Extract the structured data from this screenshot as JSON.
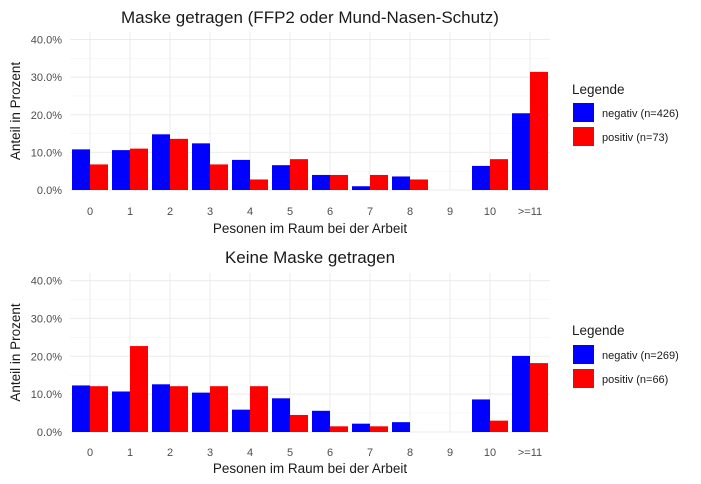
{
  "chart_data": [
    {
      "type": "bar",
      "title": "Maske getragen (FFP2 oder Mund-Nasen-Schutz)",
      "xlabel": "Pesonen im Raum bei der Arbeit",
      "ylabel": "Anteil in Prozent",
      "categories": [
        "0",
        "1",
        "2",
        "3",
        "4",
        "5",
        "6",
        "7",
        "8",
        "9",
        "10",
        ">=11"
      ],
      "ylim": [
        0,
        42
      ],
      "yticks": [
        0,
        10,
        20,
        30,
        40
      ],
      "ytick_labels": [
        "0.0%",
        "10.0%",
        "20.0%",
        "30.0%",
        "40.0%"
      ],
      "grid": true,
      "legend": {
        "title": "Legende",
        "position": "right"
      },
      "series": [
        {
          "name": "negativ (n=426)",
          "color": "#0000ff",
          "values": [
            10.8,
            10.6,
            14.8,
            12.4,
            8.0,
            6.6,
            4.0,
            1.0,
            3.6,
            0.0,
            6.4,
            20.4
          ]
        },
        {
          "name": "positiv (n=73)",
          "color": "#ff0000",
          "values": [
            6.8,
            11.0,
            13.6,
            6.8,
            2.8,
            8.2,
            4.0,
            4.0,
            2.8,
            0.0,
            8.2,
            31.4
          ]
        }
      ]
    },
    {
      "type": "bar",
      "title": "Keine Maske getragen",
      "xlabel": "Pesonen im Raum bei der Arbeit",
      "ylabel": "Anteil in Prozent",
      "categories": [
        "0",
        "1",
        "2",
        "3",
        "4",
        "5",
        "6",
        "7",
        "8",
        "9",
        "10",
        ">=11"
      ],
      "ylim": [
        0,
        42
      ],
      "yticks": [
        0,
        10,
        20,
        30,
        40
      ],
      "ytick_labels": [
        "0.0%",
        "10.0%",
        "20.0%",
        "30.0%",
        "40.0%"
      ],
      "grid": true,
      "legend": {
        "title": "Legende",
        "position": "right"
      },
      "series": [
        {
          "name": "negativ (n=269)",
          "color": "#0000ff",
          "values": [
            12.3,
            10.7,
            12.6,
            10.4,
            5.9,
            8.9,
            5.6,
            2.2,
            2.6,
            0.0,
            8.6,
            20.1
          ]
        },
        {
          "name": "positiv (n=66)",
          "color": "#ff0000",
          "values": [
            12.1,
            22.7,
            12.1,
            12.1,
            12.1,
            4.5,
            1.5,
            1.5,
            0.0,
            0.0,
            3.0,
            18.2
          ]
        }
      ]
    }
  ]
}
